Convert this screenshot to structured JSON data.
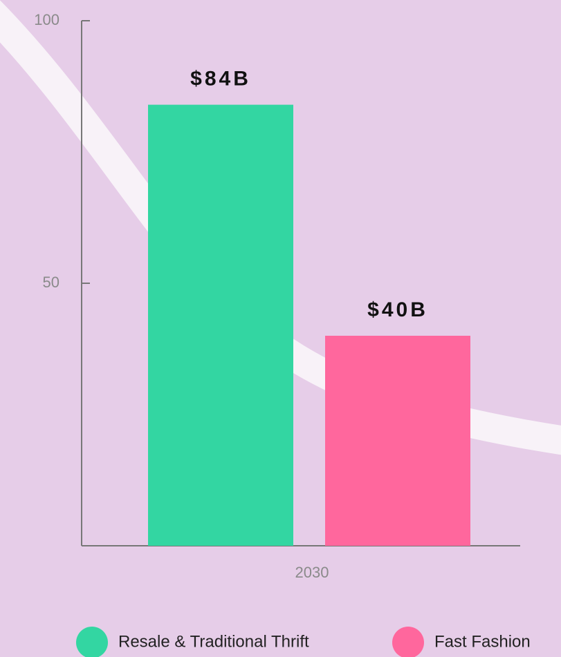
{
  "chart_data": {
    "type": "bar",
    "categories": [
      "2030"
    ],
    "series": [
      {
        "name": "Resale & Traditional Thrift",
        "color": "#33d6a2",
        "values": [
          84
        ],
        "value_labels": [
          "$84B"
        ]
      },
      {
        "name": "Fast Fashion",
        "color": "#ff679d",
        "values": [
          40
        ],
        "value_labels": [
          "$40B"
        ]
      }
    ],
    "ylim": [
      0,
      100
    ],
    "yticks": [
      50,
      100
    ]
  }
}
